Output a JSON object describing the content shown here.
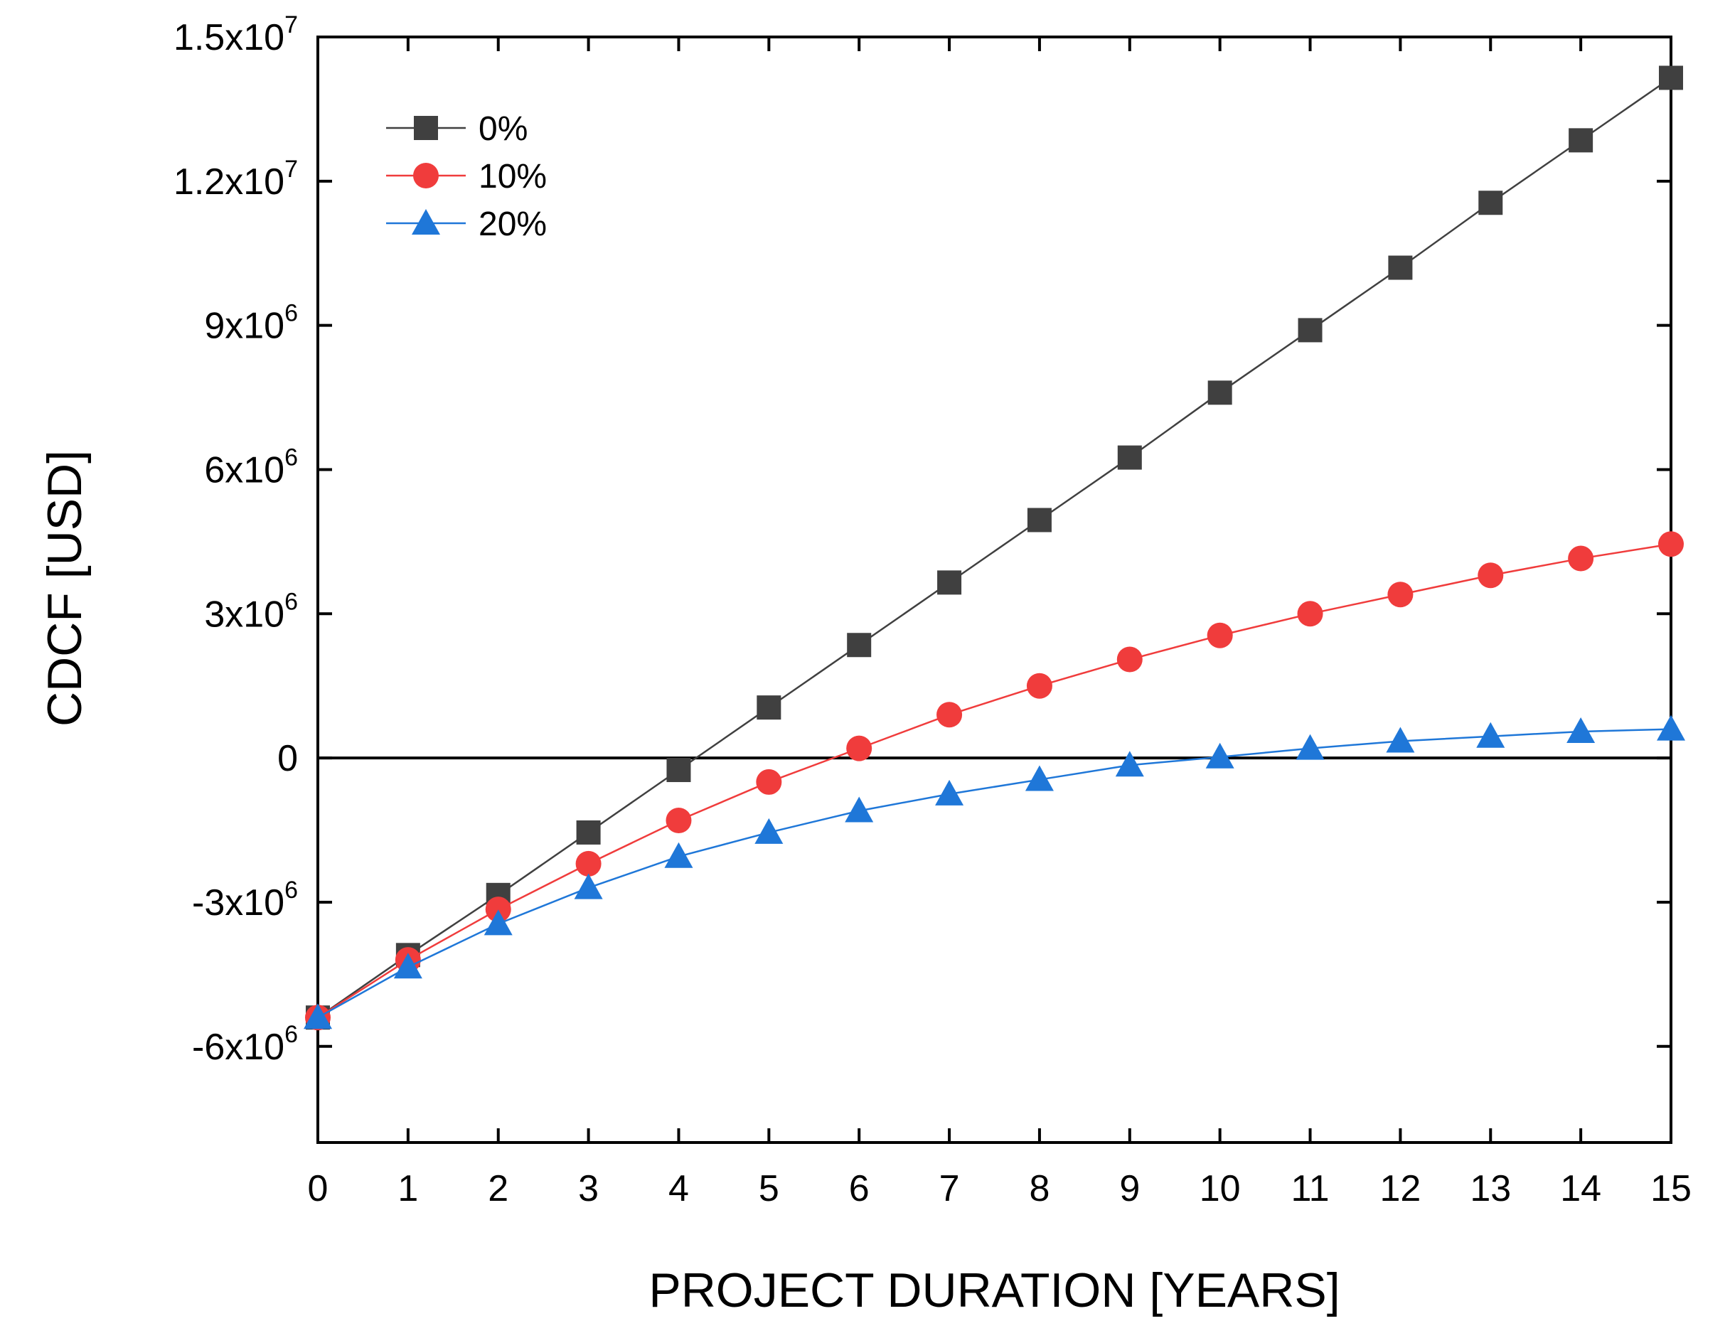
{
  "chart_data": {
    "type": "line",
    "title": "",
    "xlabel": "PROJECT DURATION [YEARS]",
    "ylabel": "CDCF [USD]",
    "xlim": [
      0,
      15
    ],
    "ylim": [
      -8000000,
      15000000
    ],
    "x": [
      0,
      1,
      2,
      3,
      4,
      5,
      6,
      7,
      8,
      9,
      10,
      11,
      12,
      13,
      14,
      15
    ],
    "x_ticks": [
      "0",
      "1",
      "2",
      "3",
      "4",
      "5",
      "6",
      "7",
      "8",
      "9",
      "10",
      "11",
      "12",
      "13",
      "14",
      "15"
    ],
    "y_ticks": [
      {
        "value": -6000000,
        "label": "-6x10",
        "exp": "6"
      },
      {
        "value": -3000000,
        "label": "-3x10",
        "exp": "6"
      },
      {
        "value": 0,
        "label": "0",
        "exp": ""
      },
      {
        "value": 3000000,
        "label": "3x10",
        "exp": "6"
      },
      {
        "value": 6000000,
        "label": "6x10",
        "exp": "6"
      },
      {
        "value": 9000000,
        "label": "9x10",
        "exp": "6"
      },
      {
        "value": 12000000,
        "label": "1.2x10",
        "exp": "7"
      },
      {
        "value": 15000000,
        "label": "1.5x10",
        "exp": "7"
      }
    ],
    "zero_line": true,
    "grid": false,
    "legend_position": "top-left",
    "series": [
      {
        "name": "0%",
        "color": "#404040",
        "marker": "square",
        "values": [
          -5400000,
          -4100000,
          -2850000,
          -1550000,
          -250000,
          1050000,
          2350000,
          3650000,
          4950000,
          6250000,
          7600000,
          8900000,
          10200000,
          11550000,
          12850000,
          14150000
        ]
      },
      {
        "name": "10%",
        "color": "#f03c3c",
        "marker": "circle",
        "values": [
          -5400000,
          -4200000,
          -3150000,
          -2200000,
          -1300000,
          -500000,
          200000,
          900000,
          1500000,
          2050000,
          2550000,
          3000000,
          3400000,
          3800000,
          4150000,
          4450000
        ]
      },
      {
        "name": "20%",
        "color": "#1f77d8",
        "marker": "triangle",
        "values": [
          -5400000,
          -4350000,
          -3450000,
          -2700000,
          -2050000,
          -1550000,
          -1100000,
          -750000,
          -450000,
          -150000,
          20000,
          200000,
          350000,
          450000,
          550000,
          600000
        ]
      }
    ]
  }
}
